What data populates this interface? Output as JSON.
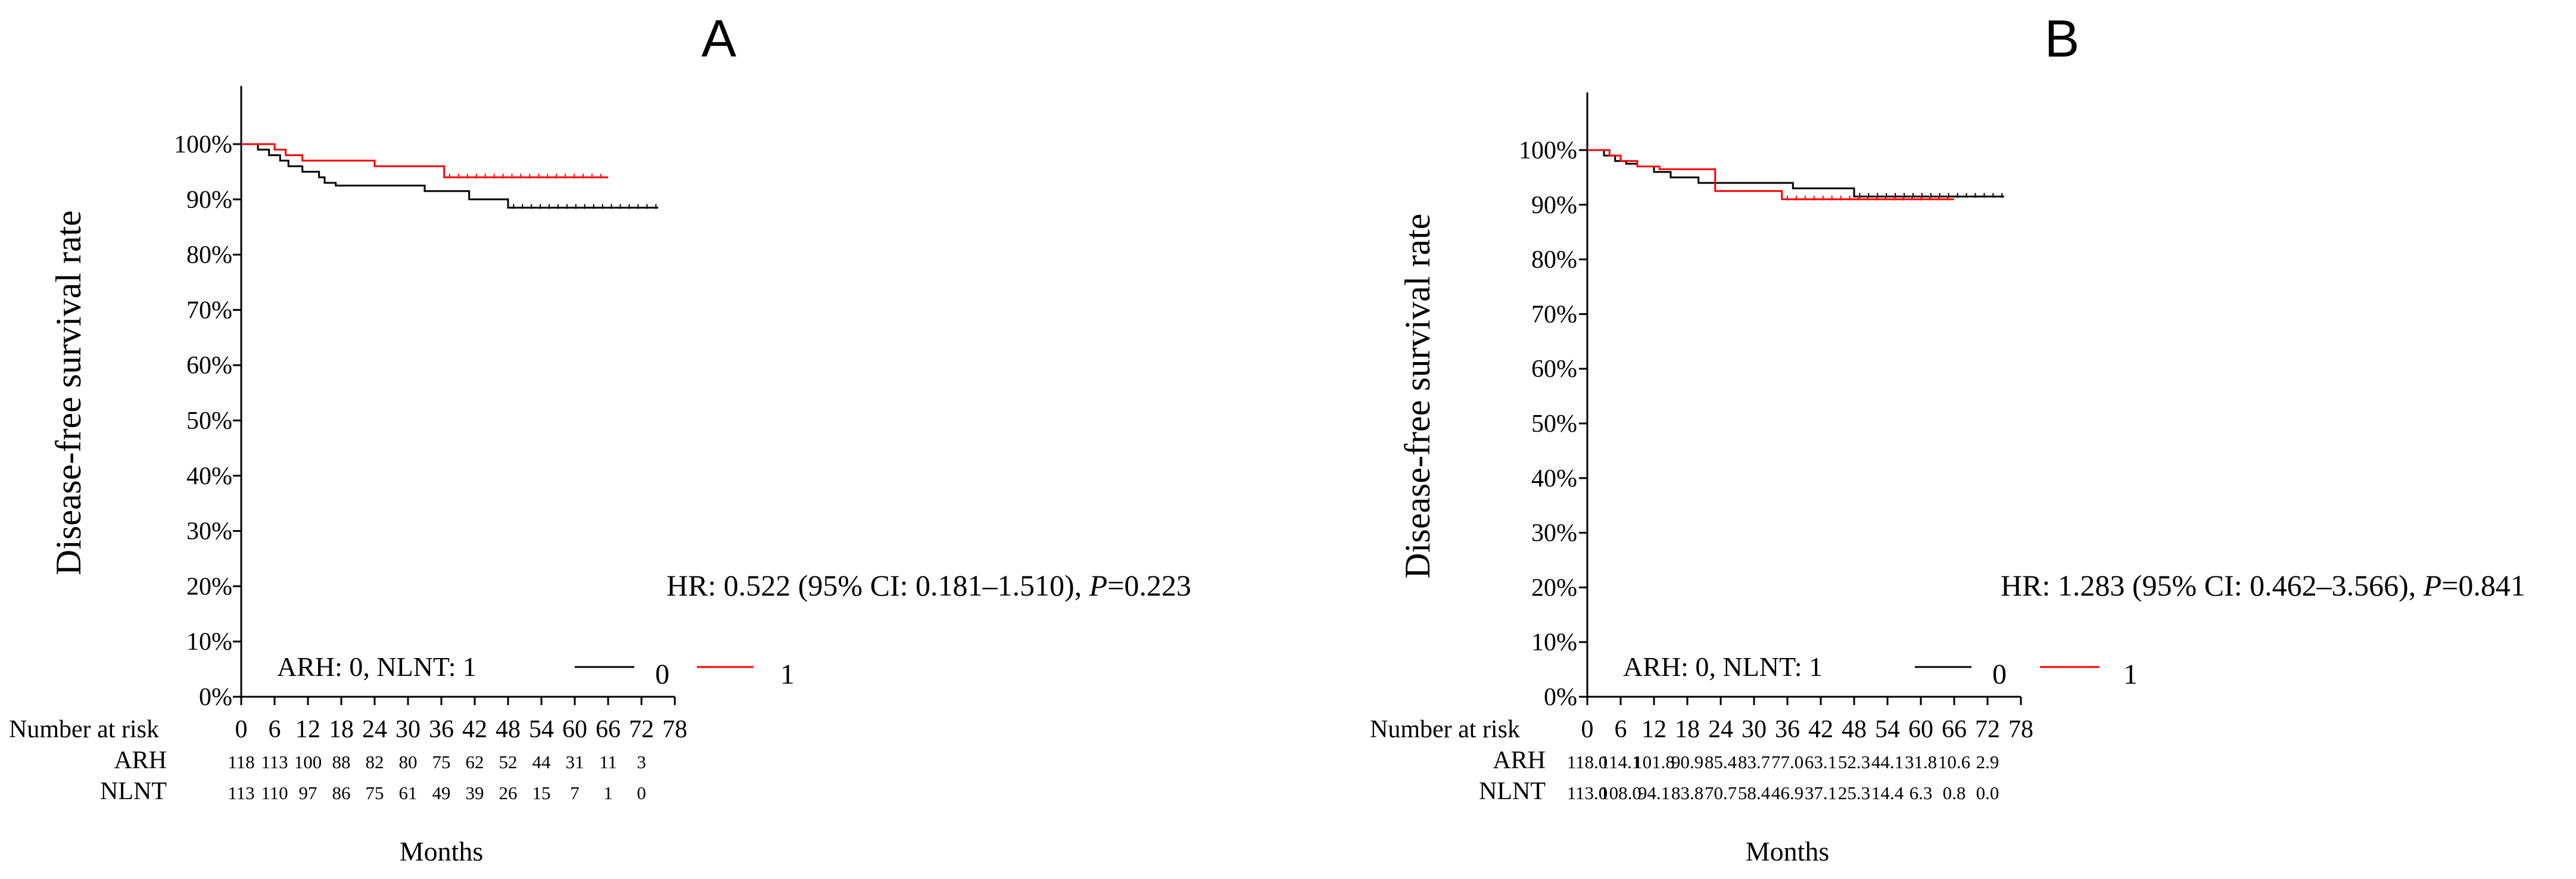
{
  "colors": {
    "arm_arh": "#000000",
    "arm_nlnt": "#ff0000",
    "axis": "#000000"
  },
  "legend_labels": {
    "arh": "0",
    "nlnt": "1"
  },
  "chart_data": [
    {
      "id": "A",
      "type": "line",
      "panel_label": "A",
      "ylabel": "Disease-free survival rate",
      "xlabel": "Months",
      "x_range": [
        0,
        78
      ],
      "y_range": [
        0,
        110
      ],
      "x_ticks": [
        "0",
        "6",
        "12",
        "18",
        "24",
        "30",
        "36",
        "42",
        "48",
        "54",
        "60",
        "66",
        "72",
        "78"
      ],
      "y_ticks": [
        "0%",
        "10%",
        "20%",
        "30%",
        "40%",
        "50%",
        "60%",
        "70%",
        "80%",
        "90%",
        "100%"
      ],
      "annotation_text": "HR: 0.522 (95% CI: 0.181–1.510), ",
      "annotation_p": "P",
      "annotation_pval": "=0.223",
      "legend_title": "ARH: 0,   NLNT: 1",
      "series": [
        {
          "name": "0",
          "color": "#000000",
          "points": [
            [
              0,
              100
            ],
            [
              3,
              100
            ],
            [
              3,
              99
            ],
            [
              5,
              99
            ],
            [
              5,
              98
            ],
            [
              7,
              98
            ],
            [
              7,
              97
            ],
            [
              8.5,
              97
            ],
            [
              8.5,
              96
            ],
            [
              11,
              96
            ],
            [
              11,
              95
            ],
            [
              14,
              95
            ],
            [
              14,
              94
            ],
            [
              15,
              94
            ],
            [
              15,
              93
            ],
            [
              17,
              93
            ],
            [
              17,
              92.5
            ],
            [
              33,
              92.5
            ],
            [
              33,
              91.5
            ],
            [
              41,
              91.5
            ],
            [
              41,
              90
            ],
            [
              48,
              90
            ],
            [
              48,
              88.5
            ],
            [
              75,
              88.5
            ]
          ]
        },
        {
          "name": "1",
          "color": "#ff0000",
          "points": [
            [
              0,
              100
            ],
            [
              6,
              100
            ],
            [
              6,
              99
            ],
            [
              8,
              99
            ],
            [
              8,
              98
            ],
            [
              11,
              98
            ],
            [
              11,
              97
            ],
            [
              24,
              97
            ],
            [
              24,
              96
            ],
            [
              36.5,
              96
            ],
            [
              36.5,
              94
            ],
            [
              66,
              94
            ]
          ]
        }
      ],
      "risk_table": {
        "title": "Number at risk",
        "rows": [
          {
            "label": "ARH",
            "values": [
              "118",
              "113",
              "100",
              "88",
              "82",
              "80",
              "75",
              "62",
              "52",
              "44",
              "31",
              "11",
              "3"
            ]
          },
          {
            "label": "NLNT",
            "values": [
              "113",
              "110",
              "97",
              "86",
              "75",
              "61",
              "49",
              "39",
              "26",
              "15",
              "7",
              "1",
              "0"
            ]
          }
        ]
      }
    },
    {
      "id": "B",
      "type": "line",
      "panel_label": "B",
      "ylabel": "Disease-free survival rate",
      "xlabel": "Months",
      "x_range": [
        0,
        78
      ],
      "y_range": [
        0,
        110
      ],
      "x_ticks": [
        "0",
        "6",
        "12",
        "18",
        "24",
        "30",
        "36",
        "42",
        "48",
        "54",
        "60",
        "66",
        "72",
        "78"
      ],
      "y_ticks": [
        "0%",
        "10%",
        "20%",
        "30%",
        "40%",
        "50%",
        "60%",
        "70%",
        "80%",
        "90%",
        "100%"
      ],
      "annotation_text": "HR: 1.283 (95% CI: 0.462–3.566), ",
      "annotation_p": "P",
      "annotation_pval": "=0.841",
      "legend_title": "ARH: 0,   NLNT: 1",
      "series": [
        {
          "name": "0",
          "color": "#000000",
          "points": [
            [
              0,
              100
            ],
            [
              3,
              100
            ],
            [
              3,
              99
            ],
            [
              5,
              99
            ],
            [
              5,
              98
            ],
            [
              7,
              98
            ],
            [
              7,
              97.5
            ],
            [
              9,
              97.5
            ],
            [
              9,
              97
            ],
            [
              12,
              97
            ],
            [
              12,
              96
            ],
            [
              15,
              96
            ],
            [
              15,
              95
            ],
            [
              20,
              95
            ],
            [
              20,
              94
            ],
            [
              37,
              94
            ],
            [
              37,
              93
            ],
            [
              48,
              93
            ],
            [
              48,
              91.5
            ],
            [
              75,
              91.5
            ]
          ]
        },
        {
          "name": "1",
          "color": "#ff0000",
          "points": [
            [
              0,
              100
            ],
            [
              4,
              100
            ],
            [
              4,
              99
            ],
            [
              6,
              99
            ],
            [
              6,
              98
            ],
            [
              9,
              98
            ],
            [
              9,
              97
            ],
            [
              13,
              97
            ],
            [
              13,
              96.5
            ],
            [
              23,
              96.5
            ],
            [
              23,
              92.5
            ],
            [
              35,
              92.5
            ],
            [
              35,
              91
            ],
            [
              66,
              91
            ]
          ]
        }
      ],
      "risk_table": {
        "title": "Number at risk",
        "rows": [
          {
            "label": "ARH",
            "values": [
              "118.0",
              "114.1",
              "101.8",
              "90.9",
              "85.4",
              "83.7",
              "77.0",
              "63.1",
              "52.3",
              "44.1",
              "31.8",
              "10.6",
              "2.9"
            ]
          },
          {
            "label": "NLNT",
            "values": [
              "113.0",
              "108.0",
              "94.1",
              "83.8",
              "70.7",
              "58.4",
              "46.9",
              "37.1",
              "25.3",
              "14.4",
              "6.3",
              "0.8",
              "0.0"
            ]
          }
        ]
      }
    }
  ]
}
